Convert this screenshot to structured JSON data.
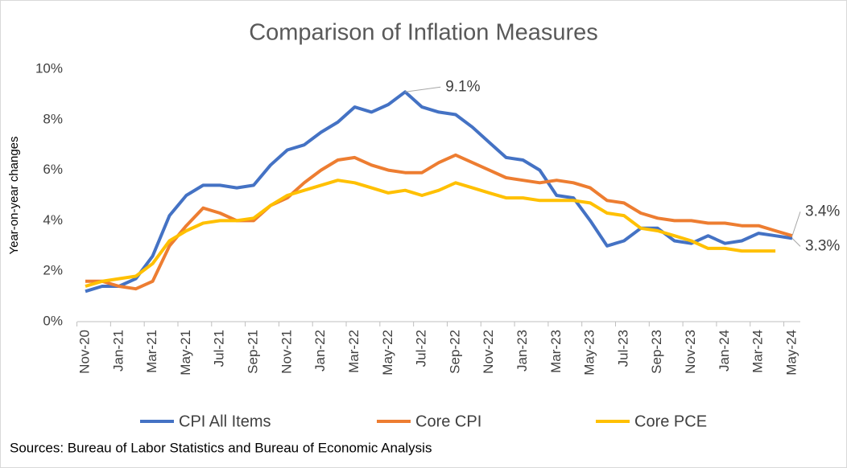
{
  "chart_data": {
    "type": "line",
    "title": "Comparison of Inflation Measures",
    "y_label": "Year-on-year changes",
    "source": "Sources: Bureau of Labor Statistics and Bureau of Economic Analysis",
    "categories": [
      "Nov-20",
      null,
      "Jan-21",
      null,
      "Mar-21",
      null,
      "May-21",
      null,
      "Jul-21",
      null,
      "Sep-21",
      null,
      "Nov-21",
      null,
      "Jan-22",
      null,
      "Mar-22",
      null,
      "May-22",
      null,
      "Jul-22",
      null,
      "Sep-22",
      null,
      "Nov-22",
      null,
      "Jan-23",
      null,
      "Mar-23",
      null,
      "May-23",
      null,
      "Jul-23",
      null,
      "Sep-23",
      null,
      "Nov-23",
      null,
      "Jan-24",
      null,
      "Mar-24",
      null,
      "May-24"
    ],
    "ylim": [
      0,
      10
    ],
    "yticks": [
      {
        "value": 0,
        "label": "0%"
      },
      {
        "value": 2,
        "label": "2%"
      },
      {
        "value": 4,
        "label": "4%"
      },
      {
        "value": 6,
        "label": "6%"
      },
      {
        "value": 8,
        "label": "8%"
      },
      {
        "value": 10,
        "label": "10%"
      }
    ],
    "grid": false,
    "legend": "bottom",
    "series": [
      {
        "name": "CPI All Items",
        "color": "#4472c4",
        "values": [
          1.2,
          1.4,
          1.4,
          1.7,
          2.6,
          4.2,
          5.0,
          5.4,
          5.4,
          5.3,
          5.4,
          6.2,
          6.8,
          7.0,
          7.5,
          7.9,
          8.5,
          8.3,
          8.6,
          9.1,
          8.5,
          8.3,
          8.2,
          7.7,
          7.1,
          6.5,
          6.4,
          6.0,
          5.0,
          4.9,
          4.0,
          3.0,
          3.2,
          3.7,
          3.7,
          3.2,
          3.1,
          3.4,
          3.1,
          3.2,
          3.5,
          3.4,
          3.3
        ],
        "value_labels": [
          null,
          null,
          null,
          null,
          null,
          null,
          null,
          null,
          null,
          null,
          null,
          null,
          null,
          null,
          null,
          null,
          null,
          null,
          null,
          "9.1%",
          null,
          null,
          null,
          null,
          null,
          null,
          null,
          null,
          null,
          null,
          null,
          null,
          null,
          null,
          null,
          null,
          null,
          null,
          null,
          null,
          null,
          null,
          "3.3%"
        ]
      },
      {
        "name": "Core CPI",
        "color": "#ed7d31",
        "values": [
          1.6,
          1.6,
          1.4,
          1.3,
          1.6,
          3.0,
          3.8,
          4.5,
          4.3,
          4.0,
          4.0,
          4.6,
          4.9,
          5.5,
          6.0,
          6.4,
          6.5,
          6.2,
          6.0,
          5.9,
          5.9,
          6.3,
          6.6,
          6.3,
          6.0,
          5.7,
          5.6,
          5.5,
          5.6,
          5.5,
          5.3,
          4.8,
          4.7,
          4.3,
          4.1,
          4.0,
          4.0,
          3.9,
          3.9,
          3.8,
          3.8,
          3.6,
          3.4
        ],
        "value_labels": [
          null,
          null,
          null,
          null,
          null,
          null,
          null,
          null,
          null,
          null,
          null,
          null,
          null,
          null,
          null,
          null,
          null,
          null,
          null,
          null,
          null,
          null,
          null,
          null,
          null,
          null,
          null,
          null,
          null,
          null,
          null,
          null,
          null,
          null,
          null,
          null,
          null,
          null,
          null,
          null,
          null,
          null,
          "3.4%"
        ]
      },
      {
        "name": "Core PCE",
        "color": "#ffc000",
        "values": [
          1.4,
          1.6,
          1.7,
          1.8,
          2.3,
          3.2,
          3.6,
          3.9,
          4.0,
          4.0,
          4.1,
          4.6,
          5.0,
          5.2,
          5.4,
          5.6,
          5.5,
          5.3,
          5.1,
          5.2,
          5.0,
          5.2,
          5.5,
          5.3,
          5.1,
          4.9,
          4.9,
          4.8,
          4.8,
          4.8,
          4.7,
          4.3,
          4.2,
          3.7,
          3.6,
          3.4,
          3.2,
          2.9,
          2.9,
          2.8,
          2.8,
          2.8,
          null
        ]
      }
    ]
  }
}
